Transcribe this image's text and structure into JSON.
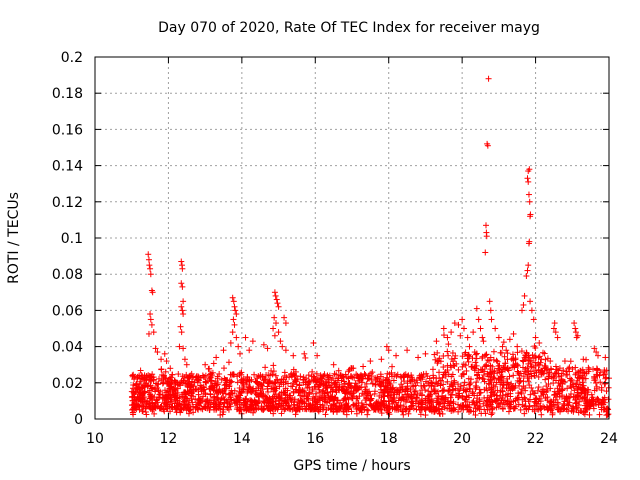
{
  "chart_data": {
    "type": "scatter",
    "title": "Day 070 of 2020, Rate Of TEC Index for receiver mayg",
    "xlabel": "GPS time / hours",
    "ylabel": "ROTI / TECUs",
    "xlim": [
      10,
      24
    ],
    "ylim": [
      0,
      0.2
    ],
    "x_ticks": [
      10,
      12,
      14,
      16,
      18,
      20,
      22,
      24
    ],
    "y_ticks": [
      0,
      0.02,
      0.04,
      0.06,
      0.08,
      0.1,
      0.12,
      0.14,
      0.16,
      0.18,
      0.2
    ],
    "x_tick_labels": [
      "10",
      "12",
      "14",
      "16",
      "18",
      "20",
      "22",
      "24"
    ],
    "y_tick_labels": [
      "0",
      "0.02",
      "0.04",
      "0.06",
      "0.08",
      "0.1",
      "0.12",
      "0.14",
      "0.16",
      "0.18",
      "0.2"
    ],
    "grid": true,
    "marker": "+",
    "color": "#ff0000",
    "data_start_hour": 11.0,
    "data_end_hour": 24.0,
    "baseline_range": [
      0.005,
      0.025
    ],
    "series": [
      {
        "name": "ROTI",
        "points": [
          [
            11.45,
            0.091
          ],
          [
            11.47,
            0.088
          ],
          [
            11.48,
            0.085
          ],
          [
            11.5,
            0.083
          ],
          [
            11.52,
            0.08
          ],
          [
            11.55,
            0.071
          ],
          [
            11.57,
            0.07
          ],
          [
            11.5,
            0.058
          ],
          [
            11.52,
            0.055
          ],
          [
            11.55,
            0.052
          ],
          [
            11.47,
            0.047
          ],
          [
            11.6,
            0.048
          ],
          [
            11.65,
            0.039
          ],
          [
            11.7,
            0.037
          ],
          [
            11.8,
            0.033
          ],
          [
            11.9,
            0.036
          ],
          [
            11.95,
            0.032
          ],
          [
            12.05,
            0.028
          ],
          [
            12.35,
            0.087
          ],
          [
            12.37,
            0.085
          ],
          [
            12.38,
            0.083
          ],
          [
            12.35,
            0.075
          ],
          [
            12.38,
            0.073
          ],
          [
            12.4,
            0.065
          ],
          [
            12.35,
            0.062
          ],
          [
            12.38,
            0.06
          ],
          [
            12.4,
            0.058
          ],
          [
            12.33,
            0.051
          ],
          [
            12.36,
            0.048
          ],
          [
            12.3,
            0.04
          ],
          [
            12.4,
            0.039
          ],
          [
            12.45,
            0.033
          ],
          [
            12.5,
            0.03
          ],
          [
            13.0,
            0.03
          ],
          [
            13.3,
            0.034
          ],
          [
            13.5,
            0.038
          ],
          [
            13.75,
            0.067
          ],
          [
            13.78,
            0.065
          ],
          [
            13.8,
            0.062
          ],
          [
            13.82,
            0.06
          ],
          [
            13.85,
            0.058
          ],
          [
            13.77,
            0.055
          ],
          [
            13.8,
            0.052
          ],
          [
            13.75,
            0.048
          ],
          [
            13.85,
            0.045
          ],
          [
            13.7,
            0.042
          ],
          [
            13.9,
            0.04
          ],
          [
            13.95,
            0.036
          ],
          [
            14.1,
            0.045
          ],
          [
            14.2,
            0.038
          ],
          [
            14.3,
            0.043
          ],
          [
            14.6,
            0.041
          ],
          [
            14.7,
            0.039
          ],
          [
            14.9,
            0.07
          ],
          [
            14.92,
            0.068
          ],
          [
            14.95,
            0.066
          ],
          [
            14.97,
            0.064
          ],
          [
            15.0,
            0.062
          ],
          [
            14.88,
            0.056
          ],
          [
            14.93,
            0.053
          ],
          [
            14.85,
            0.05
          ],
          [
            15.0,
            0.048
          ],
          [
            14.9,
            0.046
          ],
          [
            15.05,
            0.043
          ],
          [
            15.1,
            0.04
          ],
          [
            15.15,
            0.056
          ],
          [
            15.2,
            0.053
          ],
          [
            15.2,
            0.038
          ],
          [
            15.4,
            0.035
          ],
          [
            15.7,
            0.036
          ],
          [
            15.95,
            0.042
          ],
          [
            16.05,
            0.035
          ],
          [
            16.5,
            0.03
          ],
          [
            17.0,
            0.028
          ],
          [
            17.5,
            0.032
          ],
          [
            17.8,
            0.033
          ],
          [
            17.95,
            0.04
          ],
          [
            18.0,
            0.038
          ],
          [
            18.2,
            0.035
          ],
          [
            18.5,
            0.038
          ],
          [
            18.8,
            0.034
          ],
          [
            19.0,
            0.036
          ],
          [
            19.3,
            0.043
          ],
          [
            19.5,
            0.05
          ],
          [
            19.6,
            0.045
          ],
          [
            19.7,
            0.048
          ],
          [
            19.8,
            0.053
          ],
          [
            19.9,
            0.052
          ],
          [
            20.0,
            0.055
          ],
          [
            20.05,
            0.05
          ],
          [
            19.95,
            0.046
          ],
          [
            20.15,
            0.045
          ],
          [
            20.2,
            0.04
          ],
          [
            20.3,
            0.048
          ],
          [
            20.4,
            0.061
          ],
          [
            20.45,
            0.055
          ],
          [
            20.5,
            0.05
          ],
          [
            20.55,
            0.045
          ],
          [
            20.58,
            0.043
          ],
          [
            20.72,
            0.188
          ],
          [
            20.68,
            0.152
          ],
          [
            20.7,
            0.151
          ],
          [
            20.65,
            0.107
          ],
          [
            20.66,
            0.103
          ],
          [
            20.67,
            0.101
          ],
          [
            20.63,
            0.092
          ],
          [
            20.75,
            0.065
          ],
          [
            20.78,
            0.06
          ],
          [
            20.8,
            0.055
          ],
          [
            20.9,
            0.05
          ],
          [
            21.0,
            0.045
          ],
          [
            21.1,
            0.04
          ],
          [
            21.2,
            0.038
          ],
          [
            21.3,
            0.044
          ],
          [
            21.4,
            0.047
          ],
          [
            21.5,
            0.04
          ],
          [
            21.63,
            0.06
          ],
          [
            21.67,
            0.063
          ],
          [
            21.7,
            0.068
          ],
          [
            21.75,
            0.079
          ],
          [
            21.78,
            0.082
          ],
          [
            21.8,
            0.085
          ],
          [
            21.82,
            0.097
          ],
          [
            21.83,
            0.098
          ],
          [
            21.85,
            0.112
          ],
          [
            21.86,
            0.113
          ],
          [
            21.84,
            0.12
          ],
          [
            21.82,
            0.124
          ],
          [
            21.8,
            0.131
          ],
          [
            21.78,
            0.133
          ],
          [
            21.8,
            0.137
          ],
          [
            21.83,
            0.138
          ],
          [
            21.85,
            0.065
          ],
          [
            21.9,
            0.06
          ],
          [
            21.95,
            0.055
          ],
          [
            22.0,
            0.045
          ],
          [
            22.1,
            0.042
          ],
          [
            22.4,
            0.032
          ],
          [
            22.5,
            0.05
          ],
          [
            22.52,
            0.053
          ],
          [
            22.55,
            0.048
          ],
          [
            22.6,
            0.045
          ],
          [
            22.8,
            0.032
          ],
          [
            23.05,
            0.053
          ],
          [
            23.08,
            0.05
          ],
          [
            23.1,
            0.048
          ],
          [
            23.12,
            0.045
          ],
          [
            23.15,
            0.046
          ],
          [
            23.3,
            0.033
          ],
          [
            23.6,
            0.039
          ],
          [
            23.65,
            0.037
          ],
          [
            23.7,
            0.035
          ],
          [
            23.9,
            0.034
          ]
        ]
      }
    ]
  }
}
